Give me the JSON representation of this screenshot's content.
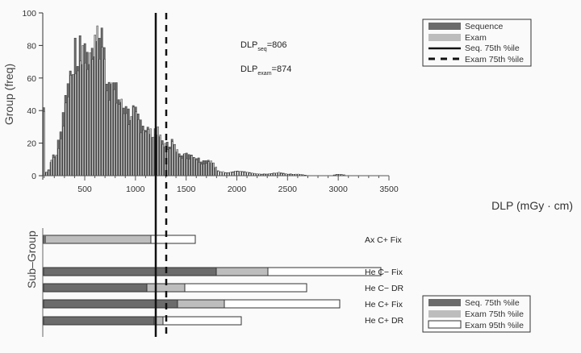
{
  "chart_data": [
    {
      "type": "bar",
      "title": "",
      "xlabel": "DLP (mGy · cm)",
      "ylabel": "Group (freq)",
      "xlim": [
        0,
        3500
      ],
      "ylim": [
        0,
        100
      ],
      "xticks": [
        500,
        1000,
        1500,
        2000,
        2500,
        3000,
        3500
      ],
      "yticks": [
        0,
        20,
        40,
        60,
        80,
        100
      ],
      "bin_width": 20,
      "series": [
        {
          "name": "Sequence",
          "color": "#6b6b6b"
        },
        {
          "name": "Exam",
          "color": "#bdbdbd"
        }
      ],
      "histogram_envelope": {
        "x": [
          0,
          20,
          40,
          60,
          80,
          100,
          120,
          140,
          160,
          180,
          200,
          220,
          240,
          260,
          280,
          300,
          320,
          340,
          360,
          380,
          400,
          420,
          440,
          460,
          480,
          500,
          520,
          540,
          560,
          580,
          600,
          620,
          640,
          660,
          680,
          700,
          720,
          740,
          760,
          780,
          800,
          820,
          840,
          860,
          880,
          900,
          920,
          940,
          960,
          980,
          1000,
          1050,
          1100,
          1150,
          1200,
          1250,
          1300,
          1350,
          1400,
          1450,
          1500,
          1550,
          1600,
          1650,
          1700,
          1750,
          1800,
          1900,
          2000,
          2100,
          2200,
          2300,
          2400,
          2500,
          2600,
          2700,
          2800,
          2900,
          3000,
          3100
        ],
        "y": [
          43,
          6,
          2,
          2,
          2,
          4,
          1,
          5,
          10,
          13,
          12,
          15,
          29,
          27,
          40,
          49,
          65,
          58,
          61,
          76,
          78,
          70,
          86,
          79,
          73,
          92,
          73,
          77,
          83,
          86,
          81,
          98,
          84,
          91,
          78,
          63,
          65,
          55,
          69,
          55,
          53,
          49,
          48,
          46,
          42,
          47,
          40,
          36,
          40,
          41,
          38,
          34,
          30,
          27,
          30,
          22,
          19,
          22,
          16,
          14,
          13,
          14,
          11,
          9,
          10,
          9,
          3,
          2,
          3,
          2,
          1,
          1,
          2,
          1,
          1,
          0,
          0,
          0,
          1,
          0
        ]
      },
      "annotations": [
        {
          "label": "DLP_seq=806",
          "value": 806,
          "line": "solid"
        },
        {
          "label": "DLP_exam=874",
          "value": 874,
          "line": "dashed"
        }
      ],
      "legend": [
        "Sequence",
        "Exam",
        "Seq. 75th %ile",
        "Exam 75th %ile"
      ],
      "legend_position": "upper right"
    },
    {
      "type": "bar",
      "orientation": "horizontal",
      "ylabel": "Sub–Group",
      "categories": [
        "Ax C+ Fix",
        "He C− Fix",
        "He C− DR",
        "He C+ Fix",
        "He C+ DR"
      ],
      "series": [
        {
          "name": "Seq. 75th %ile",
          "color": "#6b6b6b",
          "values": [
            10,
            1310,
            770,
            1010,
            1040
          ]
        },
        {
          "name": "Exam 75th %ile",
          "color": "#bdbdbd",
          "values": [
            780,
            1700,
            1050,
            1370,
            870
          ]
        },
        {
          "name": "Exam 95th %ile",
          "color": "#ffffff",
          "values": [
            1130,
            2560,
            1950,
            2300,
            1470
          ]
        }
      ],
      "legend": [
        "Seq. 75th %ile",
        "Exam 75th %ile",
        "Exam 95th %ile"
      ],
      "legend_position": "lower right"
    }
  ],
  "labels": {
    "ylabel_top": "Group (freq)",
    "ylabel_bottom": "Sub–Group",
    "xlabel": "DLP (mGy · cm)",
    "dlp_seq_main": "DLP",
    "dlp_seq_sub": "seq",
    "dlp_seq_val": "=806",
    "dlp_exam_main": "DLP",
    "dlp_exam_sub": "exam",
    "dlp_exam_val": "=874",
    "legend_top": [
      "Sequence",
      "Exam",
      "Seq. 75th %ile",
      "Exam 75th %ile"
    ],
    "legend_bottom": [
      "Seq. 75th %ile",
      "Exam 75th %ile",
      "Exam 95th %ile"
    ],
    "xtick_labels": [
      "500",
      "1000",
      "1500",
      "2000",
      "2500",
      "3000",
      "3500"
    ],
    "ytick_labels": [
      "0",
      "20",
      "40",
      "60",
      "80",
      "100"
    ],
    "subgroups": [
      "Ax C+ Fix",
      "He C− Fix",
      "He C− DR",
      "He C+ Fix",
      "He C+ DR"
    ]
  }
}
